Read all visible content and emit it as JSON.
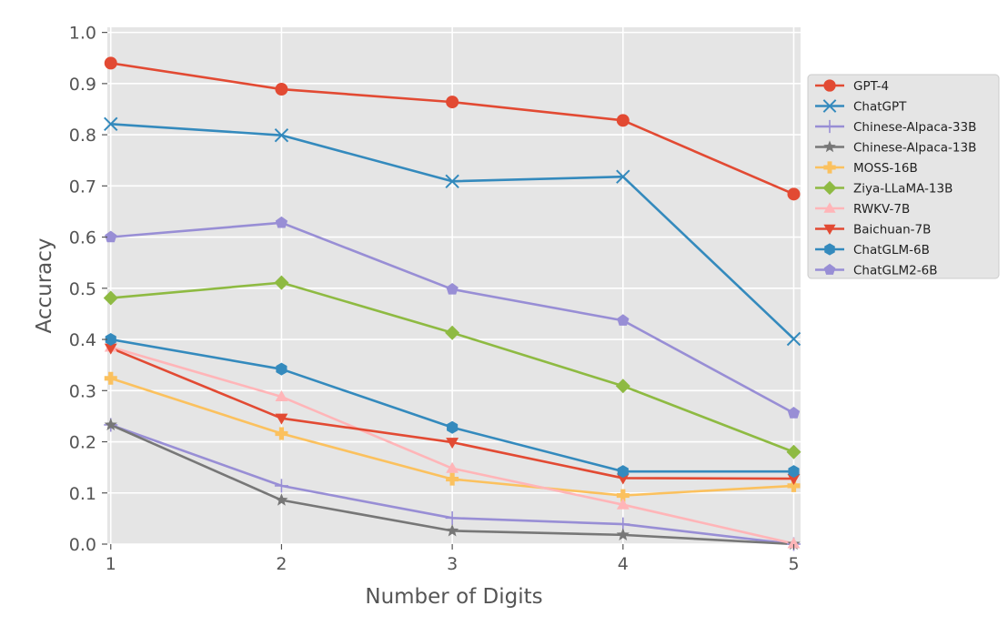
{
  "chart_data": {
    "type": "line",
    "title": "",
    "xlabel": "Number of Digits",
    "ylabel": "Accuracy",
    "x": [
      1,
      2,
      3,
      4,
      5
    ],
    "xlim": [
      0.98,
      5.04
    ],
    "ylim": [
      0.0,
      1.01
    ],
    "xticks": [
      "1",
      "2",
      "3",
      "4",
      "5"
    ],
    "yticks": [
      "0.0",
      "0.1",
      "0.2",
      "0.3",
      "0.4",
      "0.5",
      "0.6",
      "0.7",
      "0.8",
      "0.9",
      "1.0"
    ],
    "grid": true,
    "legend_position": "right",
    "series": [
      {
        "name": "GPT-4",
        "color": "#E24A33",
        "marker": "circle",
        "values": [
          0.94,
          0.889,
          0.864,
          0.828,
          0.684
        ]
      },
      {
        "name": "ChatGPT",
        "color": "#348ABD",
        "marker": "x",
        "values": [
          0.821,
          0.799,
          0.709,
          0.718,
          0.401
        ]
      },
      {
        "name": "Chinese-Alpaca-33B",
        "color": "#988ED5",
        "marker": "plus",
        "values": [
          0.233,
          0.114,
          0.051,
          0.039,
          0.0
        ]
      },
      {
        "name": "Chinese-Alpaca-13B",
        "color": "#777777",
        "marker": "star",
        "values": [
          0.233,
          0.086,
          0.026,
          0.018,
          0.0
        ]
      },
      {
        "name": "MOSS-16B",
        "color": "#FBC15E",
        "marker": "plus-filled",
        "values": [
          0.324,
          0.216,
          0.127,
          0.095,
          0.114
        ]
      },
      {
        "name": "Ziya-LLaMA-13B",
        "color": "#8EBA42",
        "marker": "diamond",
        "values": [
          0.481,
          0.511,
          0.413,
          0.309,
          0.18
        ]
      },
      {
        "name": "RWKV-7B",
        "color": "#FFB5B8",
        "marker": "triangle-up",
        "values": [
          0.385,
          0.288,
          0.148,
          0.077,
          0.001
        ]
      },
      {
        "name": "Baichuan-7B",
        "color": "#E24A33",
        "marker": "triangle-down",
        "values": [
          0.383,
          0.246,
          0.199,
          0.129,
          0.128
        ]
      },
      {
        "name": "ChatGLM-6B",
        "color": "#348ABD",
        "marker": "hexagon",
        "values": [
          0.4,
          0.342,
          0.228,
          0.142,
          0.142
        ]
      },
      {
        "name": "ChatGLM2-6B",
        "color": "#988ED5",
        "marker": "pentagon",
        "values": [
          0.6,
          0.628,
          0.498,
          0.437,
          0.256
        ]
      }
    ]
  }
}
